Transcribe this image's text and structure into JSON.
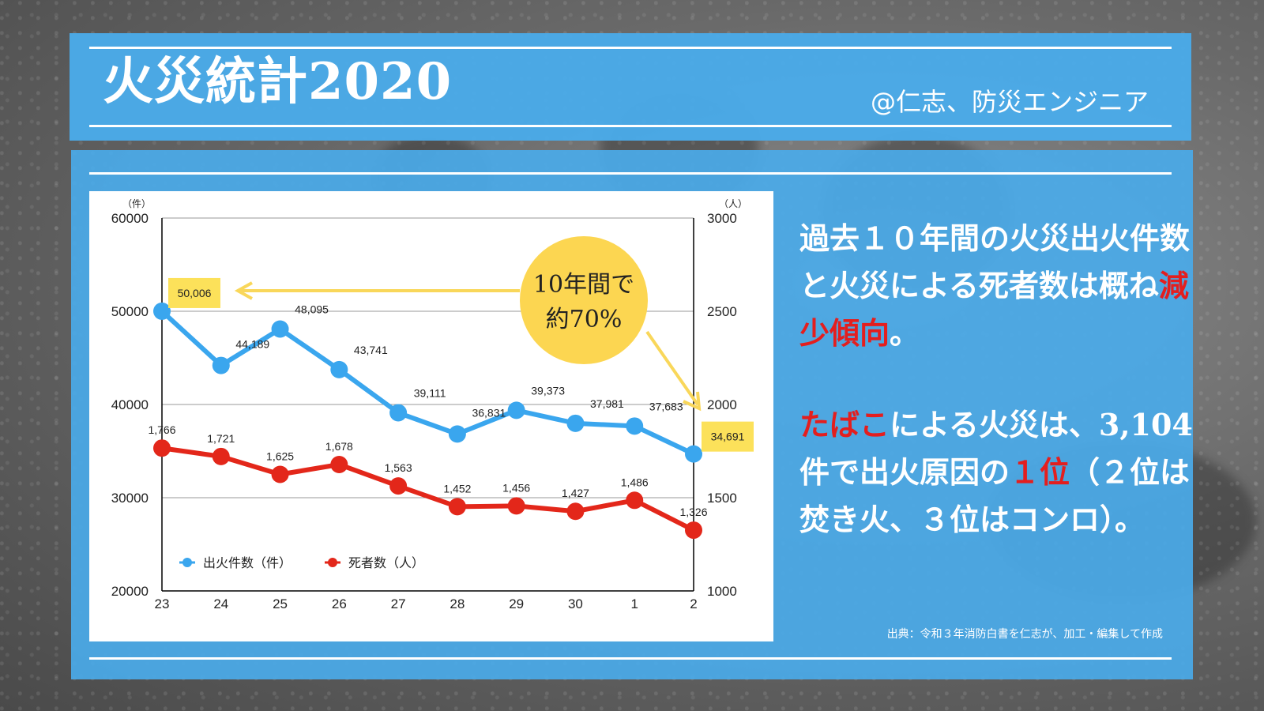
{
  "header": {
    "title": "火災統計2020",
    "author": "@仁志、防災エンジニア"
  },
  "summary": {
    "p1_part1": "過去１０年間の火災出火件数と火災による死者数は概ね",
    "p1_highlight": "減少傾向",
    "p1_part2": "。",
    "p2_highlight1": "たばこ",
    "p2_part1": "による火災は、3,104件で出火原因の",
    "p2_highlight2": "１位",
    "p2_part2": "（２位は焚き火、３位はコンロ）。"
  },
  "source": "出典：令和３年消防白書を仁志が、加工・編集して作成",
  "colors": {
    "blue_band": "#4aaae8",
    "fire_series": "#3aa6ee",
    "death_series": "#e3271a",
    "callout": "#fcd651",
    "highlight_label": "#fce15a"
  },
  "chart_data": {
    "type": "line",
    "categories": [
      "23",
      "24",
      "25",
      "26",
      "27",
      "28",
      "29",
      "30",
      "1",
      "2"
    ],
    "y_left": {
      "unit": "（件）",
      "min": 20000,
      "max": 60000,
      "ticks": [
        20000,
        30000,
        40000,
        50000,
        60000
      ]
    },
    "y_right": {
      "unit": "（人）",
      "min": 1000,
      "max": 3000,
      "ticks": [
        1000,
        1500,
        2000,
        2500,
        3000
      ]
    },
    "series": [
      {
        "name": "出火件数（件）",
        "axis": "left",
        "color": "#3aa6ee",
        "values": [
          50006,
          44189,
          48095,
          43741,
          39111,
          36831,
          39373,
          37981,
          37683,
          34691
        ],
        "labels": [
          "50,006",
          "44,189",
          "48,095",
          "43,741",
          "39,111",
          "36,831",
          "39,373",
          "37,981",
          "37,683",
          "34,691"
        ],
        "highlighted": [
          0,
          9
        ]
      },
      {
        "name": "死者数（人）",
        "axis": "right",
        "color": "#e3271a",
        "values": [
          1766,
          1721,
          1625,
          1678,
          1563,
          1452,
          1456,
          1427,
          1486,
          1326
        ],
        "labels": [
          "1,766",
          "1,721",
          "1,625",
          "1,678",
          "1,563",
          "1,452",
          "1,456",
          "1,427",
          "1,486",
          "1,326"
        ]
      }
    ],
    "annotation": {
      "line1": "10年間で",
      "line2": "約70%"
    },
    "grid": true,
    "legend": "bottom-left"
  }
}
